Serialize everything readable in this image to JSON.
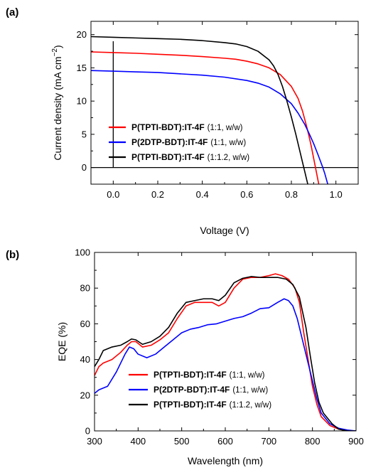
{
  "chart_data": [
    {
      "panel_label": "(a)",
      "type": "line",
      "xlabel": "Voltage (V)",
      "ylabel_text": "Current density (mA cm",
      "ylabel_sup": "−2",
      "ylabel_close": ")",
      "xlim": [
        -0.1,
        1.1
      ],
      "ylim": [
        -2.5,
        22
      ],
      "xticks": [
        0.0,
        0.2,
        0.4,
        0.6,
        0.8,
        1.0
      ],
      "xtick_labels": [
        "0.0",
        "0.2",
        "0.4",
        "0.6",
        "0.8",
        "1.0"
      ],
      "yticks": [
        0,
        5,
        10,
        15,
        20
      ],
      "ytick_labels": [
        "0",
        "5",
        "10",
        "15",
        "20"
      ],
      "grid": false,
      "legend_position": "center-left",
      "series": [
        {
          "name": "P(TPTI-BDT):IT-4F",
          "ratio": "(1:1, w/w)",
          "color": "#ff0000",
          "x": [
            -0.1,
            0.0,
            0.1,
            0.2,
            0.3,
            0.4,
            0.5,
            0.55,
            0.6,
            0.65,
            0.7,
            0.75,
            0.8,
            0.83,
            0.85,
            0.87,
            0.88,
            0.89,
            0.9,
            0.91,
            0.92,
            0.93
          ],
          "y": [
            17.4,
            17.3,
            17.2,
            17.05,
            16.9,
            16.7,
            16.45,
            16.3,
            16.0,
            15.6,
            15.0,
            14.0,
            12.2,
            10.4,
            8.5,
            6.0,
            4.6,
            3.1,
            1.4,
            -0.3,
            -2.0,
            -3.6
          ]
        },
        {
          "name": "P(2DTP-BDT):IT-4F",
          "ratio": "(1:1, w/w)",
          "color": "#0000ff",
          "x": [
            -0.1,
            0.0,
            0.1,
            0.2,
            0.3,
            0.4,
            0.5,
            0.6,
            0.65,
            0.7,
            0.75,
            0.8,
            0.83,
            0.86,
            0.88,
            0.9,
            0.92,
            0.94,
            0.95,
            0.96,
            0.97
          ],
          "y": [
            14.6,
            14.5,
            14.4,
            14.3,
            14.1,
            13.9,
            13.6,
            13.1,
            12.7,
            12.1,
            11.1,
            9.6,
            8.2,
            6.5,
            5.1,
            3.6,
            1.9,
            0.1,
            -0.9,
            -2.1,
            -3.3
          ]
        },
        {
          "name": "P(TPTI-BDT):IT-4F",
          "ratio": "(1:1.2, w/w)",
          "color": "#000000",
          "x": [
            -0.1,
            0.0,
            0.1,
            0.2,
            0.3,
            0.4,
            0.5,
            0.55,
            0.6,
            0.65,
            0.7,
            0.72,
            0.74,
            0.76,
            0.78,
            0.8,
            0.82,
            0.84,
            0.85,
            0.86,
            0.87,
            0.88
          ],
          "y": [
            19.7,
            19.6,
            19.5,
            19.4,
            19.3,
            19.1,
            18.8,
            18.6,
            18.2,
            17.5,
            16.2,
            15.3,
            14.0,
            12.2,
            10.0,
            7.6,
            5.0,
            2.2,
            0.8,
            -0.6,
            -2.0,
            -3.4
          ]
        }
      ]
    },
    {
      "panel_label": "(b)",
      "type": "line",
      "xlabel": "Wavelength (nm)",
      "ylabel": "EQE (%)",
      "xlim": [
        300,
        900
      ],
      "ylim": [
        0,
        100
      ],
      "xticks": [
        300,
        400,
        500,
        600,
        700,
        800,
        900
      ],
      "xtick_labels": [
        "300",
        "400",
        "500",
        "600",
        "700",
        "800",
        "900"
      ],
      "yticks": [
        0,
        20,
        40,
        60,
        80,
        100
      ],
      "ytick_labels": [
        "0",
        "20",
        "40",
        "60",
        "80",
        "100"
      ],
      "grid": false,
      "legend_position": "bottom-center",
      "series": [
        {
          "name": "P(TPTI-BDT):IT-4F",
          "ratio": "(1:1, w/w)",
          "color": "#ff0000",
          "x": [
            300,
            310,
            320,
            340,
            360,
            375,
            385,
            395,
            410,
            430,
            450,
            470,
            490,
            510,
            530,
            550,
            570,
            585,
            600,
            620,
            640,
            660,
            680,
            700,
            715,
            730,
            745,
            760,
            770,
            780,
            790,
            800,
            810,
            820,
            840,
            860,
            880,
            900
          ],
          "y": [
            31,
            36,
            38,
            40,
            44,
            48,
            50,
            50,
            47,
            48,
            51,
            55,
            63,
            70,
            72,
            72,
            72,
            70,
            72,
            80,
            85,
            86,
            86,
            87,
            88,
            87,
            85,
            80,
            72,
            55,
            40,
            25,
            15,
            8,
            3,
            1,
            0,
            0
          ]
        },
        {
          "name": "P(2DTP-BDT):IT-4F",
          "ratio": "(1:1, w/w)",
          "color": "#0000ff",
          "x": [
            300,
            310,
            330,
            350,
            370,
            380,
            390,
            400,
            420,
            440,
            460,
            480,
            500,
            520,
            540,
            560,
            580,
            600,
            620,
            640,
            660,
            680,
            700,
            720,
            735,
            745,
            755,
            765,
            780,
            790,
            800,
            810,
            820,
            840,
            860,
            880,
            900
          ],
          "y": [
            21,
            23,
            25,
            33,
            43,
            47,
            46,
            43,
            41,
            43,
            47,
            51,
            55,
            57,
            58,
            59.5,
            60,
            61.5,
            63,
            64,
            66,
            68.5,
            69,
            72,
            74,
            73,
            70,
            63,
            48,
            38,
            28,
            18,
            10,
            4,
            1.5,
            0.5,
            0
          ]
        },
        {
          "name": "P(TPTI-BDT):IT-4F",
          "ratio": "(1:1.2, w/w)",
          "color": "#000000",
          "x": [
            300,
            310,
            320,
            340,
            360,
            375,
            385,
            395,
            410,
            430,
            450,
            470,
            490,
            510,
            530,
            550,
            570,
            585,
            600,
            620,
            640,
            660,
            680,
            700,
            720,
            740,
            755,
            770,
            785,
            795,
            805,
            815,
            825,
            845,
            860,
            880,
            900
          ],
          "y": [
            36,
            40,
            45,
            47,
            48,
            50,
            51.5,
            51,
            48.5,
            50,
            53,
            58,
            66,
            72,
            73,
            74,
            74,
            73,
            76,
            83,
            85.5,
            86.5,
            86,
            86,
            86,
            85,
            82,
            75,
            58,
            42,
            27,
            16,
            10,
            4,
            1,
            0,
            0
          ]
        }
      ]
    }
  ]
}
